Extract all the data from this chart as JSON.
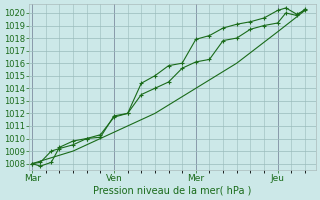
{
  "xlabel": "Pression niveau de la mer( hPa )",
  "bg_color": "#cce8e8",
  "grid_color": "#99bbbb",
  "line_color": "#1a6b1a",
  "ylim": [
    1007.5,
    1020.7
  ],
  "yticks": [
    1008,
    1009,
    1010,
    1011,
    1012,
    1013,
    1014,
    1015,
    1016,
    1017,
    1018,
    1019,
    1020
  ],
  "x_tick_labels": [
    "Mar",
    "Ven",
    "Mer",
    "Jeu"
  ],
  "x_tick_positions": [
    0,
    3,
    6,
    9
  ],
  "xlim": [
    -0.1,
    10.4
  ],
  "series1_x": [
    0,
    0.3,
    0.7,
    1.0,
    1.5,
    2.0,
    2.5,
    3.0,
    3.5,
    4.0,
    4.5,
    5.0,
    5.5,
    6.0,
    6.5,
    7.0,
    7.5,
    8.0,
    8.5,
    9.0,
    9.3,
    9.7,
    10.0
  ],
  "series1_y": [
    1008.0,
    1007.8,
    1008.1,
    1009.3,
    1009.8,
    1010.0,
    1010.3,
    1011.7,
    1012.0,
    1013.5,
    1014.0,
    1014.5,
    1015.6,
    1016.1,
    1016.3,
    1017.8,
    1018.0,
    1018.7,
    1019.0,
    1019.2,
    1020.0,
    1019.8,
    1020.3
  ],
  "series2_x": [
    0,
    0.3,
    0.7,
    1.0,
    1.5,
    2.0,
    2.5,
    3.0,
    3.5,
    4.0,
    4.5,
    5.0,
    5.5,
    6.0,
    6.5,
    7.0,
    7.5,
    8.0,
    8.5,
    9.0,
    9.3,
    9.7,
    10.0
  ],
  "series2_y": [
    1008.0,
    1008.1,
    1009.0,
    1009.2,
    1009.5,
    1010.0,
    1010.1,
    1011.8,
    1012.0,
    1014.4,
    1015.0,
    1015.8,
    1016.0,
    1017.9,
    1018.2,
    1018.8,
    1019.1,
    1019.3,
    1019.6,
    1020.2,
    1020.4,
    1019.9,
    1020.2
  ],
  "series3_x": [
    0,
    1.5,
    3.0,
    4.5,
    6.0,
    7.5,
    9.0,
    10.0
  ],
  "series3_y": [
    1008.0,
    1009.0,
    1010.5,
    1012.0,
    1014.0,
    1016.0,
    1018.5,
    1020.2
  ]
}
